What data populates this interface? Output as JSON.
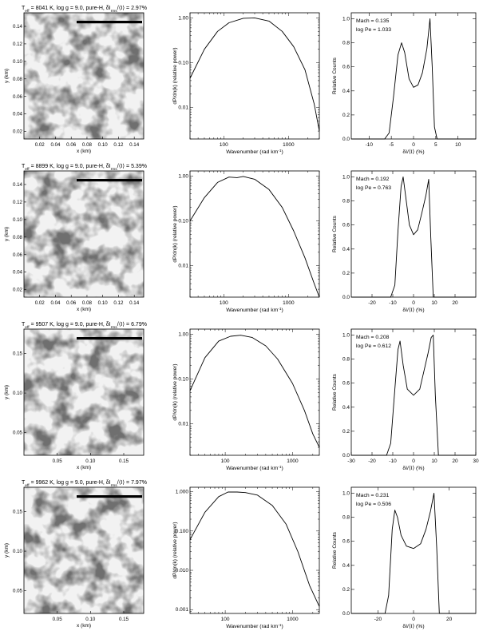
{
  "colors": {
    "ink": "#000000",
    "paper": "#ffffff"
  },
  "rows": [
    {
      "image_panel": {
        "title_parts": [
          "T",
          "eff",
          " = 8041 K, log g = 9.0, pure-H, δI",
          "rms",
          "/⟨I⟩ = 2.97%"
        ],
        "xlabel": "x (km)",
        "ylabel": "y (km)",
        "xticks": [
          "0.02",
          "0.04",
          "0.06",
          "0.08",
          "0.10",
          "0.12",
          "0.14"
        ],
        "yticks": [
          "0.14",
          "0.12",
          "0.10",
          "0.08",
          "0.06",
          "0.04",
          "0.02"
        ]
      },
      "spectrum": {
        "type": "line",
        "xlabel_parts": [
          "Wavenumber (rad km",
          "-1",
          ")"
        ],
        "ylabel": "dP/dn(k) (relative power)",
        "xscale": "log",
        "yscale": "log",
        "xlim": [
          30,
          3000
        ],
        "ylim": [
          0.002,
          1.3
        ],
        "xticks": [
          {
            "v": 100,
            "label": "100"
          },
          {
            "v": 1000,
            "label": "1000"
          }
        ],
        "yticks": [
          {
            "v": 1,
            "label": "1.00"
          },
          {
            "v": 0.1,
            "label": "0.10"
          },
          {
            "v": 0.01,
            "label": "0.01"
          }
        ],
        "x": [
          30,
          50,
          80,
          120,
          200,
          300,
          500,
          800,
          1200,
          1800,
          2500,
          3000
        ],
        "y": [
          0.045,
          0.2,
          0.5,
          0.78,
          0.98,
          1.0,
          0.85,
          0.5,
          0.23,
          0.07,
          0.012,
          0.003
        ]
      },
      "histogram": {
        "type": "line",
        "xlabel": "δI/⟨I⟩ (%)",
        "ylabel": "Relative Counts",
        "xlim": [
          -14,
          14
        ],
        "ylim": [
          0,
          1.05
        ],
        "xticks": [
          {
            "v": -10,
            "label": "-10"
          },
          {
            "v": -5,
            "label": "-5"
          },
          {
            "v": 0,
            "label": "0"
          },
          {
            "v": 5,
            "label": "5"
          },
          {
            "v": 10,
            "label": "10"
          }
        ],
        "yticks": [
          {
            "v": 0,
            "label": "0.0"
          },
          {
            "v": 0.2,
            "label": "0.2"
          },
          {
            "v": 0.4,
            "label": "0.4"
          },
          {
            "v": 0.6,
            "label": "0.6"
          },
          {
            "v": 0.8,
            "label": "0.8"
          },
          {
            "v": 1.0,
            "label": "1.0"
          }
        ],
        "annotations": [
          "Mach = 0.135",
          "log Pe = 1.033"
        ],
        "x": [
          -14,
          -6.5,
          -5.5,
          -4.5,
          -3.5,
          -2.7,
          -2,
          -1,
          0,
          1,
          2,
          3,
          3.7,
          4.2,
          4.7,
          5.3,
          14
        ],
        "y": [
          0,
          0,
          0.05,
          0.35,
          0.7,
          0.8,
          0.72,
          0.5,
          0.43,
          0.45,
          0.55,
          0.75,
          1.0,
          0.6,
          0.1,
          0,
          0
        ]
      }
    },
    {
      "image_panel": {
        "title_parts": [
          "T",
          "eff",
          " = 8899 K, log g = 9.0, pure-H, δI",
          "rms",
          "/⟨I⟩ = 5.39%"
        ],
        "xlabel": "x (km)",
        "ylabel": "y (km)",
        "xticks": [
          "0.02",
          "0.04",
          "0.06",
          "0.08",
          "0.10",
          "0.12",
          "0.14"
        ],
        "yticks": [
          "0.14",
          "0.12",
          "0.10",
          "0.08",
          "0.06",
          "0.04",
          "0.02"
        ]
      },
      "spectrum": {
        "type": "line",
        "xlabel_parts": [
          "Wavenumber (rad km",
          "-1",
          ")"
        ],
        "ylabel": "dP/dn(k) (relative power)",
        "xscale": "log",
        "yscale": "log",
        "xlim": [
          30,
          3000
        ],
        "ylim": [
          0.002,
          1.3
        ],
        "xticks": [
          {
            "v": 100,
            "label": "100"
          },
          {
            "v": 1000,
            "label": "1000"
          }
        ],
        "yticks": [
          {
            "v": 1,
            "label": "1.00"
          },
          {
            "v": 0.1,
            "label": "0.10"
          },
          {
            "v": 0.01,
            "label": "0.01"
          }
        ],
        "x": [
          30,
          50,
          80,
          120,
          160,
          200,
          300,
          500,
          800,
          1200,
          1800,
          2500,
          3000
        ],
        "y": [
          0.1,
          0.33,
          0.72,
          0.95,
          0.92,
          0.98,
          0.85,
          0.5,
          0.2,
          0.06,
          0.015,
          0.004,
          0.002
        ]
      },
      "histogram": {
        "type": "line",
        "xlabel": "δI/⟨I⟩ (%)",
        "ylabel": "Relative Counts",
        "xlim": [
          -30,
          30
        ],
        "ylim": [
          0,
          1.05
        ],
        "xticks": [
          {
            "v": -20,
            "label": "-20"
          },
          {
            "v": -10,
            "label": "-10"
          },
          {
            "v": 0,
            "label": "0"
          },
          {
            "v": 10,
            "label": "10"
          },
          {
            "v": 20,
            "label": "20"
          }
        ],
        "yticks": [
          {
            "v": 0,
            "label": "0.0"
          },
          {
            "v": 0.2,
            "label": "0.2"
          },
          {
            "v": 0.4,
            "label": "0.4"
          },
          {
            "v": 0.6,
            "label": "0.6"
          },
          {
            "v": 0.8,
            "label": "0.8"
          },
          {
            "v": 1.0,
            "label": "1.0"
          }
        ],
        "annotations": [
          "Mach = 0.192",
          "log Pe = 0.763"
        ],
        "x": [
          -30,
          -11,
          -9,
          -7.5,
          -6,
          -5,
          -3.5,
          -2,
          0,
          2,
          4,
          6,
          7.3,
          8.3,
          9.5,
          30
        ],
        "y": [
          0,
          0,
          0.1,
          0.55,
          0.92,
          1.0,
          0.8,
          0.6,
          0.52,
          0.56,
          0.7,
          0.85,
          0.98,
          0.5,
          0,
          0
        ]
      }
    },
    {
      "image_panel": {
        "title_parts": [
          "T",
          "eff",
          " = 9507 K, log g = 9.0, pure-H, δI",
          "rms",
          "/⟨I⟩ = 6.79%"
        ],
        "xlabel": "x (km)",
        "ylabel": "y (km)",
        "xticks": [
          "0.05",
          "0.10",
          "0.15"
        ],
        "yticks": [
          "0.15",
          "0.10",
          "0.05"
        ]
      },
      "spectrum": {
        "type": "line",
        "xlabel_parts": [
          "Wavenumber (rad km",
          "-1",
          ")"
        ],
        "ylabel": "dP/dn(k) (relative power)",
        "xscale": "log",
        "yscale": "log",
        "xlim": [
          30,
          2500
        ],
        "ylim": [
          0.002,
          1.3
        ],
        "xticks": [
          {
            "v": 100,
            "label": "100"
          },
          {
            "v": 1000,
            "label": "1000"
          }
        ],
        "yticks": [
          {
            "v": 1,
            "label": "1.00"
          },
          {
            "v": 0.1,
            "label": "0.10"
          },
          {
            "v": 0.01,
            "label": "0.01"
          }
        ],
        "x": [
          30,
          50,
          80,
          120,
          170,
          250,
          400,
          600,
          1000,
          1500,
          2000,
          2500
        ],
        "y": [
          0.055,
          0.3,
          0.7,
          0.9,
          0.95,
          0.85,
          0.55,
          0.28,
          0.08,
          0.02,
          0.006,
          0.003
        ]
      },
      "histogram": {
        "type": "line",
        "xlabel": "δI/⟨I⟩ (%)",
        "ylabel": "Relative Counts",
        "xlim": [
          -30,
          30
        ],
        "ylim": [
          0,
          1.05
        ],
        "xticks": [
          {
            "v": -30,
            "label": "-30"
          },
          {
            "v": -20,
            "label": "-20"
          },
          {
            "v": -10,
            "label": "-10"
          },
          {
            "v": 0,
            "label": "0"
          },
          {
            "v": 10,
            "label": "10"
          },
          {
            "v": 20,
            "label": "20"
          },
          {
            "v": 30,
            "label": "30"
          }
        ],
        "yticks": [
          {
            "v": 0,
            "label": "0.0"
          },
          {
            "v": 0.2,
            "label": "0.2"
          },
          {
            "v": 0.4,
            "label": "0.4"
          },
          {
            "v": 0.6,
            "label": "0.6"
          },
          {
            "v": 0.8,
            "label": "0.8"
          },
          {
            "v": 1.0,
            "label": "1.0"
          }
        ],
        "annotations": [
          "Mach = 0.208",
          "log Pe = 0.612"
        ],
        "x": [
          -30,
          -13,
          -11,
          -9,
          -7.5,
          -6.5,
          -5,
          -3,
          0,
          3,
          5,
          7,
          8.5,
          9.5,
          10.5,
          12,
          30
        ],
        "y": [
          0,
          0,
          0.1,
          0.55,
          0.88,
          0.95,
          0.75,
          0.55,
          0.5,
          0.55,
          0.7,
          0.85,
          0.98,
          1.0,
          0.5,
          0,
          0
        ]
      }
    },
    {
      "image_panel": {
        "title_parts": [
          "T",
          "eff",
          " = 9962 K, log g = 9.0, pure-H, δI",
          "rms",
          "/⟨I⟩ = 7.97%"
        ],
        "xlabel": "x (km)",
        "ylabel": "y (km)",
        "xticks": [
          "0.05",
          "0.10",
          "0.15"
        ],
        "yticks": [
          "0.15",
          "0.10",
          "0.05"
        ]
      },
      "spectrum": {
        "type": "line",
        "xlabel_parts": [
          "Wavenumber (rad km",
          "-1",
          ")"
        ],
        "ylabel": "dP/dn(k) (relative power)",
        "xscale": "log",
        "yscale": "log",
        "xlim": [
          30,
          2500
        ],
        "ylim": [
          0.0008,
          1.3
        ],
        "xticks": [
          {
            "v": 100,
            "label": "100"
          },
          {
            "v": 1000,
            "label": "1000"
          }
        ],
        "yticks": [
          {
            "v": 1,
            "label": "1.000"
          },
          {
            "v": 0.1,
            "label": "0.100"
          },
          {
            "v": 0.01,
            "label": "0.010"
          },
          {
            "v": 0.001,
            "label": "0.001"
          }
        ],
        "x": [
          30,
          50,
          80,
          110,
          150,
          200,
          300,
          500,
          800,
          1200,
          1800,
          2500
        ],
        "y": [
          0.06,
          0.3,
          0.75,
          0.98,
          0.98,
          0.95,
          0.82,
          0.45,
          0.15,
          0.03,
          0.004,
          0.0012
        ]
      },
      "histogram": {
        "type": "line",
        "xlabel": "δI/⟨I⟩ (%)",
        "ylabel": "Relative Counts",
        "xlim": [
          -35,
          35
        ],
        "ylim": [
          0,
          1.05
        ],
        "xticks": [
          {
            "v": -20,
            "label": "-20"
          },
          {
            "v": 0,
            "label": "0"
          },
          {
            "v": 20,
            "label": "20"
          }
        ],
        "yticks": [
          {
            "v": 0,
            "label": "0.0"
          },
          {
            "v": 0.2,
            "label": "0.2"
          },
          {
            "v": 0.4,
            "label": "0.4"
          },
          {
            "v": 0.6,
            "label": "0.6"
          },
          {
            "v": 0.8,
            "label": "0.8"
          },
          {
            "v": 1.0,
            "label": "1.0"
          }
        ],
        "annotations": [
          "Mach = 0.231",
          "log Pe = 0.506"
        ],
        "x": [
          -35,
          -16,
          -14,
          -12,
          -10.5,
          -9,
          -7,
          -4,
          0,
          4,
          7,
          9.5,
          11.5,
          13,
          14.5,
          35
        ],
        "y": [
          0,
          0,
          0.15,
          0.7,
          0.86,
          0.8,
          0.65,
          0.56,
          0.54,
          0.58,
          0.7,
          0.85,
          1.0,
          0.55,
          0,
          0
        ]
      }
    }
  ],
  "chart_data": [
    {
      "type": "line",
      "panel": "row1-spectrum",
      "xlabel": "Wavenumber (rad km-1)",
      "ylabel": "dP/dn(k) (relative power)",
      "xscale": "log",
      "yscale": "log",
      "x": [
        30,
        50,
        80,
        120,
        200,
        300,
        500,
        800,
        1200,
        1800,
        2500,
        3000
      ],
      "y": [
        0.045,
        0.2,
        0.5,
        0.78,
        0.98,
        1.0,
        0.85,
        0.5,
        0.23,
        0.07,
        0.012,
        0.003
      ]
    },
    {
      "type": "line",
      "panel": "row1-histogram",
      "xlabel": "δI/⟨I⟩ (%)",
      "ylabel": "Relative Counts",
      "annotations": [
        "Mach = 0.135",
        "log Pe = 1.033"
      ],
      "x": [
        -14,
        -6.5,
        -5.5,
        -4.5,
        -3.5,
        -2.7,
        -2,
        -1,
        0,
        1,
        2,
        3,
        3.7,
        4.2,
        4.7,
        5.3,
        14
      ],
      "y": [
        0,
        0,
        0.05,
        0.35,
        0.7,
        0.8,
        0.72,
        0.5,
        0.43,
        0.45,
        0.55,
        0.75,
        1.0,
        0.6,
        0.1,
        0,
        0
      ]
    },
    {
      "type": "line",
      "panel": "row2-spectrum",
      "xscale": "log",
      "yscale": "log",
      "x": [
        30,
        50,
        80,
        120,
        160,
        200,
        300,
        500,
        800,
        1200,
        1800,
        2500,
        3000
      ],
      "y": [
        0.1,
        0.33,
        0.72,
        0.95,
        0.92,
        0.98,
        0.85,
        0.5,
        0.2,
        0.06,
        0.015,
        0.004,
        0.002
      ]
    },
    {
      "type": "line",
      "panel": "row2-histogram",
      "annotations": [
        "Mach = 0.192",
        "log Pe = 0.763"
      ],
      "x": [
        -30,
        -11,
        -9,
        -7.5,
        -6,
        -5,
        -3.5,
        -2,
        0,
        2,
        4,
        6,
        7.3,
        8.3,
        9.5,
        30
      ],
      "y": [
        0,
        0,
        0.1,
        0.55,
        0.92,
        1.0,
        0.8,
        0.6,
        0.52,
        0.56,
        0.7,
        0.85,
        0.98,
        0.5,
        0,
        0
      ]
    },
    {
      "type": "line",
      "panel": "row3-spectrum",
      "xscale": "log",
      "yscale": "log",
      "x": [
        30,
        50,
        80,
        120,
        170,
        250,
        400,
        600,
        1000,
        1500,
        2000,
        2500
      ],
      "y": [
        0.055,
        0.3,
        0.7,
        0.9,
        0.95,
        0.85,
        0.55,
        0.28,
        0.08,
        0.02,
        0.006,
        0.003
      ]
    },
    {
      "type": "line",
      "panel": "row3-histogram",
      "annotations": [
        "Mach = 0.208",
        "log Pe = 0.612"
      ],
      "x": [
        -30,
        -13,
        -11,
        -9,
        -7.5,
        -6.5,
        -5,
        -3,
        0,
        3,
        5,
        7,
        8.5,
        9.5,
        10.5,
        12,
        30
      ],
      "y": [
        0,
        0,
        0.1,
        0.55,
        0.88,
        0.95,
        0.75,
        0.55,
        0.5,
        0.55,
        0.7,
        0.85,
        0.98,
        1.0,
        0.5,
        0,
        0
      ]
    },
    {
      "type": "line",
      "panel": "row4-spectrum",
      "xscale": "log",
      "yscale": "log",
      "x": [
        30,
        50,
        80,
        110,
        150,
        200,
        300,
        500,
        800,
        1200,
        1800,
        2500
      ],
      "y": [
        0.06,
        0.3,
        0.75,
        0.98,
        0.98,
        0.95,
        0.82,
        0.45,
        0.15,
        0.03,
        0.004,
        0.0012
      ]
    },
    {
      "type": "line",
      "panel": "row4-histogram",
      "annotations": [
        "Mach = 0.231",
        "log Pe = 0.506"
      ],
      "x": [
        -35,
        -16,
        -14,
        -12,
        -10.5,
        -9,
        -7,
        -4,
        0,
        4,
        7,
        9.5,
        11.5,
        13,
        14.5,
        35
      ],
      "y": [
        0,
        0,
        0.15,
        0.7,
        0.86,
        0.8,
        0.65,
        0.56,
        0.54,
        0.58,
        0.7,
        0.85,
        1.0,
        0.55,
        0,
        0
      ]
    }
  ]
}
